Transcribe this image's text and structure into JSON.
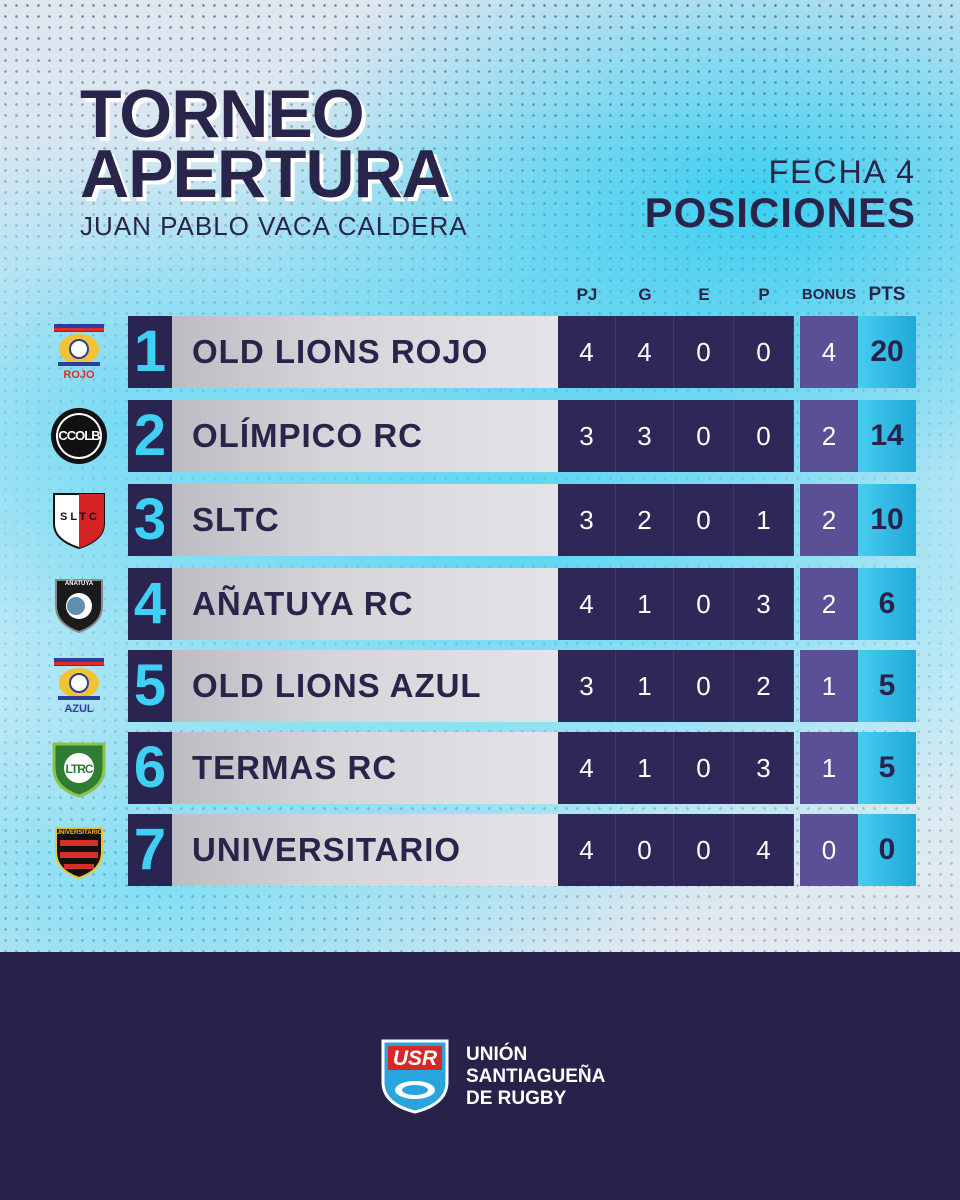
{
  "header": {
    "title_line1": "TORNEO",
    "title_line2": "APERTURA",
    "subtitle": "JUAN PABLO VACA CALDERA",
    "round": "FECHA 4",
    "section": "POSICIONES"
  },
  "columns": [
    "PJ",
    "G",
    "E",
    "P",
    "BONUS",
    "PTS"
  ],
  "rows": [
    {
      "pos": "1",
      "team": "OLD LIONS ROJO",
      "pj": "4",
      "g": "4",
      "e": "0",
      "p": "0",
      "bonus": "4",
      "pts": "20",
      "logo_label": "ROJO",
      "logo_icon": "old-lions-crest-icon"
    },
    {
      "pos": "2",
      "team": "OLÍMPICO RC",
      "pj": "3",
      "g": "3",
      "e": "0",
      "p": "0",
      "bonus": "2",
      "pts": "14",
      "logo_label": "CCOLB",
      "logo_icon": "olimpico-crest-icon"
    },
    {
      "pos": "3",
      "team": "SLTC",
      "pj": "3",
      "g": "2",
      "e": "0",
      "p": "1",
      "bonus": "2",
      "pts": "10",
      "logo_label": "SLTC",
      "logo_icon": "sltc-shield-icon"
    },
    {
      "pos": "4",
      "team": "AÑATUYA RC",
      "pj": "4",
      "g": "1",
      "e": "0",
      "p": "3",
      "bonus": "2",
      "pts": "6",
      "logo_label": "AÑATUYA",
      "logo_icon": "anatuya-shield-icon"
    },
    {
      "pos": "5",
      "team": "OLD LIONS AZUL",
      "pj": "3",
      "g": "1",
      "e": "0",
      "p": "2",
      "bonus": "1",
      "pts": "5",
      "logo_label": "AZUL",
      "logo_icon": "old-lions-crest-icon"
    },
    {
      "pos": "6",
      "team": "TERMAS RC",
      "pj": "4",
      "g": "1",
      "e": "0",
      "p": "3",
      "bonus": "1",
      "pts": "5",
      "logo_label": "LTRC",
      "logo_icon": "termas-shield-icon"
    },
    {
      "pos": "7",
      "team": "UNIVERSITARIO",
      "pj": "4",
      "g": "0",
      "e": "0",
      "p": "4",
      "bonus": "0",
      "pts": "0",
      "logo_label": "UNIVERSITARIO",
      "logo_icon": "universitario-shield-icon"
    }
  ],
  "footer": {
    "logo_text": "USR",
    "org_line1": "UNIÓN",
    "org_line2": "SANTIAGUEÑA",
    "org_line3": "DE RUGBY"
  },
  "colors": {
    "navy": "#28224a",
    "cyan": "#3fd0f5",
    "bonus": "#5a5096",
    "stat": "#2e2858"
  }
}
